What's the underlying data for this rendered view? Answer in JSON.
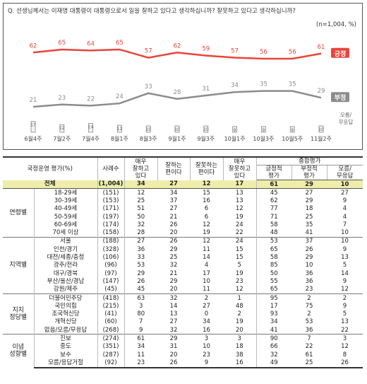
{
  "chart_data": {
    "type": "line",
    "title": "Q. 선생님께서는 이재명 대통령이 대통령으로서 일을 잘하고 있다고 생각하십니까? 잘못하고 있다고 생각하십니까?",
    "note": "(n=1,004, %)",
    "categories": [
      "6월4주",
      "7월2주",
      "7월4주",
      "8월1주",
      "8월3주",
      "9월1주",
      "9월3주",
      "10월1주",
      "10월3주",
      "10월5주",
      "11월2주"
    ],
    "series": [
      {
        "name": "긍정",
        "color": "#e8453c",
        "values": [
          62,
          65,
          64,
          65,
          57,
          62,
          59,
          57,
          56,
          56,
          61
        ]
      },
      {
        "name": "부정",
        "color": "#8c8c8c",
        "values": [
          21,
          23,
          22,
          24,
          33,
          28,
          31,
          34,
          35,
          35,
          29
        ]
      }
    ],
    "dk_values": [
      17,
      12,
      14,
      11,
      10,
      10,
      10,
      9,
      9,
      9,
      10
    ],
    "dk_label": "모름/\n무응답",
    "dk_label_lines": [
      "모름/",
      "무응답"
    ],
    "ylim": [
      0,
      80
    ]
  },
  "table": {
    "header": {
      "group": "국정운영 평가(%)",
      "n": "사례수",
      "cols": [
        "매우\n잘하고\n있다",
        "잘하는\n편이다",
        "잘못하는\n편이다",
        "매우\n잘못하고\n있다"
      ],
      "summary": "종합평가",
      "summary_cols": [
        "긍정적\n평가",
        "부정적\n평가",
        "모름/\n무응답"
      ]
    },
    "total": {
      "label": "전체",
      "n": "(1,004)",
      "v": [
        "34",
        "27",
        "12",
        "17",
        "61",
        "29",
        "10"
      ]
    },
    "groups": [
      {
        "name": "연령별",
        "rows": [
          {
            "label": "18-29세",
            "n": "(151)",
            "v": [
              "12",
              "34",
              "15",
              "13",
              "45",
              "27",
              "27"
            ]
          },
          {
            "label": "30-39세",
            "n": "(153)",
            "v": [
              "25",
              "37",
              "16",
              "13",
              "62",
              "29",
              "9"
            ]
          },
          {
            "label": "40-49세",
            "n": "(171)",
            "v": [
              "51",
              "27",
              "6",
              "12",
              "77",
              "18",
              "4"
            ]
          },
          {
            "label": "50-59세",
            "n": "(197)",
            "v": [
              "50",
              "21",
              "6",
              "19",
              "71",
              "25",
              "4"
            ]
          },
          {
            "label": "60-69세",
            "n": "(174)",
            "v": [
              "32",
              "26",
              "12",
              "24",
              "58",
              "35",
              "7"
            ]
          },
          {
            "label": "70세 이상",
            "n": "(158)",
            "v": [
              "28",
              "20",
              "19",
              "22",
              "48",
              "41",
              "10"
            ]
          }
        ]
      },
      {
        "name": "지역별",
        "rows": [
          {
            "label": "서울",
            "n": "(188)",
            "v": [
              "27",
              "26",
              "12",
              "24",
              "53",
              "37",
              "10"
            ]
          },
          {
            "label": "인천/경기",
            "n": "(328)",
            "v": [
              "36",
              "29",
              "11",
              "15",
              "65",
              "26",
              "9"
            ]
          },
          {
            "label": "대전/세종/충청",
            "n": "(106)",
            "v": [
              "33",
              "25",
              "14",
              "15",
              "58",
              "29",
              "13"
            ]
          },
          {
            "label": "광주/전라",
            "n": "(96)",
            "v": [
              "53",
              "32",
              "4",
              "5",
              "85",
              "10",
              "5"
            ]
          },
          {
            "label": "대구/경북",
            "n": "(97)",
            "v": [
              "29",
              "21",
              "17",
              "19",
              "50",
              "36",
              "14"
            ]
          },
          {
            "label": "부산/울산/경남",
            "n": "(147)",
            "v": [
              "26",
              "29",
              "10",
              "23",
              "55",
              "36",
              "9"
            ]
          },
          {
            "label": "강원/제주",
            "n": "(45)",
            "v": [
              "45",
              "20",
              "11",
              "12",
              "65",
              "23",
              "12"
            ]
          }
        ]
      },
      {
        "name": "지지\n정당별",
        "rows": [
          {
            "label": "더불어민주당",
            "n": "(418)",
            "v": [
              "63",
              "32",
              "2",
              "1",
              "95",
              "2",
              "2"
            ]
          },
          {
            "label": "국민의힘",
            "n": "(215)",
            "v": [
              "3",
              "14",
              "27",
              "48",
              "17",
              "75",
              "9"
            ]
          },
          {
            "label": "조국혁신당",
            "n": "(41)",
            "v": [
              "80",
              "13",
              "0",
              "2",
              "93",
              "2",
              "5"
            ]
          },
          {
            "label": "개혁신당",
            "n": "(60)",
            "v": [
              "7",
              "27",
              "34",
              "19",
              "34",
              "53",
              "13"
            ]
          },
          {
            "label": "없음/모름/무응답",
            "n": "(268)",
            "v": [
              "9",
              "32",
              "16",
              "20",
              "41",
              "36",
              "22"
            ]
          }
        ]
      },
      {
        "name": "이념\n성향별",
        "rows": [
          {
            "label": "진보",
            "n": "(274)",
            "v": [
              "61",
              "29",
              "3",
              "3",
              "90",
              "7",
              "3"
            ]
          },
          {
            "label": "중도",
            "n": "(351)",
            "v": [
              "34",
              "31",
              "10",
              "18",
              "66",
              "22",
              "12"
            ]
          },
          {
            "label": "보수",
            "n": "(287)",
            "v": [
              "11",
              "20",
              "23",
              "38",
              "32",
              "61",
              "8"
            ]
          },
          {
            "label": "모름/응답거절",
            "n": "(92)",
            "v": [
              "23",
              "26",
              "9",
              "16",
              "49",
              "25",
              "26"
            ]
          }
        ]
      }
    ]
  }
}
